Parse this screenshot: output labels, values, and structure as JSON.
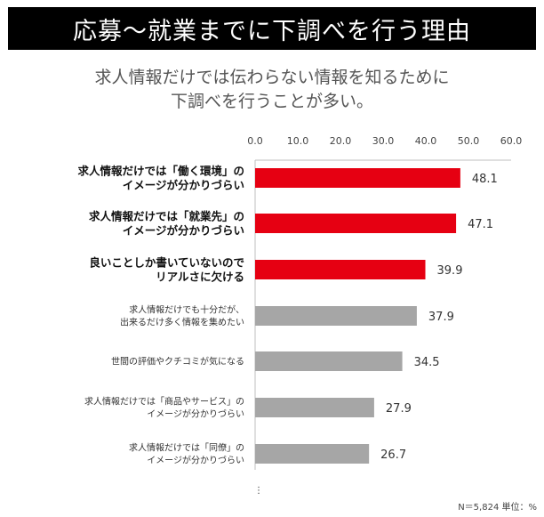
{
  "header": {
    "title": "応募〜就業までに下調べを行う理由"
  },
  "subtitle": {
    "line1": "求人情報だけでは伝わらない情報を知るために",
    "line2": "下調べを行うことが多い。"
  },
  "footer": {
    "note": "N＝5,824 単位：%",
    "continuation": "⋮"
  },
  "chart_data": {
    "type": "bar",
    "orientation": "horizontal",
    "xlim": [
      0,
      60
    ],
    "ticks": [
      "0.0",
      "10.0",
      "20.0",
      "30.0",
      "40.0",
      "50.0",
      "60.0"
    ],
    "grid": false,
    "colors": {
      "highlight": "#e60012",
      "normal": "#a6a6a6"
    },
    "categories": [
      {
        "lines": [
          "求人情報だけでは「働く環境」の",
          "イメージが分かりづらい"
        ],
        "highlight": true
      },
      {
        "lines": [
          "求人情報だけでは「就業先」の",
          "イメージが分かりづらい"
        ],
        "highlight": true
      },
      {
        "lines": [
          "良いことしか書いていないので",
          "リアルさに欠ける"
        ],
        "highlight": true
      },
      {
        "lines": [
          "求人情報だけでも十分だが、",
          "出来るだけ多く情報を集めたい"
        ],
        "highlight": false
      },
      {
        "lines": [
          "世間の評価やクチコミが気になる"
        ],
        "highlight": false
      },
      {
        "lines": [
          "求人情報だけでは「商品やサービス」の",
          "イメージが分かりづらい"
        ],
        "highlight": false
      },
      {
        "lines": [
          "求人情報だけでは「同僚」の",
          "イメージが分かりづらい"
        ],
        "highlight": false
      }
    ],
    "values": [
      48.1,
      47.1,
      39.9,
      37.9,
      34.5,
      27.9,
      26.7
    ],
    "value_labels": [
      "48.1",
      "47.1",
      "39.9",
      "37.9",
      "34.5",
      "27.9",
      "26.7"
    ]
  }
}
